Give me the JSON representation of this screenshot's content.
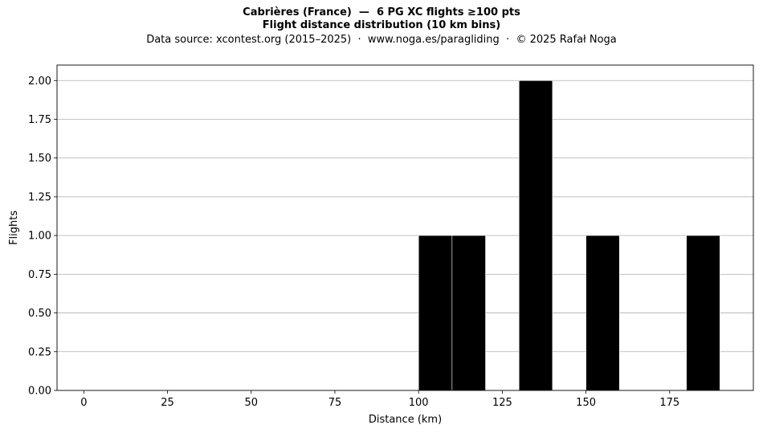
{
  "chart_data": {
    "type": "bar",
    "title_lines": [
      "Cabrières (France)  —  6 PG XC flights ≥100 pts",
      "Flight distance distribution (10 km bins)"
    ],
    "subtitle": "Data source: xcontest.org (2015–2025)  ·  www.noga.es/paragliding  ·  © 2025 Rafał Noga",
    "xlabel": "Distance (km)",
    "ylabel": "Flights",
    "xlim": [
      -8,
      200
    ],
    "ylim": [
      0,
      2.1
    ],
    "x_ticks": [
      0,
      25,
      50,
      75,
      100,
      125,
      150,
      175
    ],
    "y_ticks": [
      "0.00",
      "0.25",
      "0.50",
      "0.75",
      "1.00",
      "1.25",
      "1.50",
      "1.75",
      "2.00"
    ],
    "grid": "horizontal",
    "bar_color": "#000000",
    "bins": [
      {
        "start": 100,
        "end": 110,
        "count": 1
      },
      {
        "start": 110,
        "end": 120,
        "count": 1
      },
      {
        "start": 130,
        "end": 140,
        "count": 2
      },
      {
        "start": 150,
        "end": 160,
        "count": 1
      },
      {
        "start": 180,
        "end": 190,
        "count": 1
      }
    ]
  }
}
